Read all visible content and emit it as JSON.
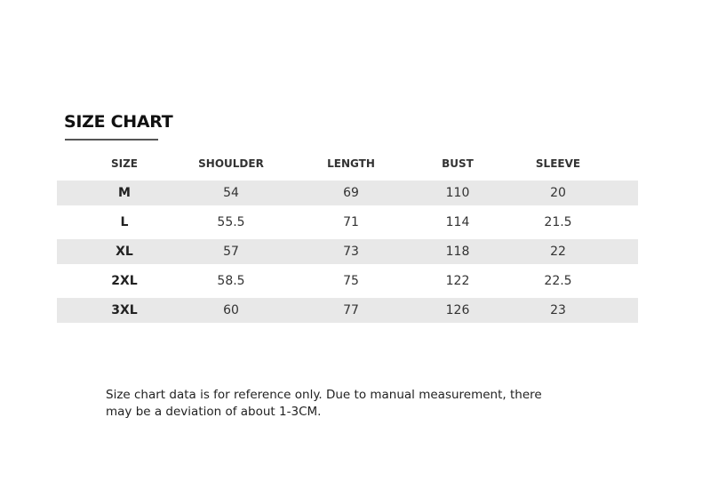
{
  "title": "SIZE CHART",
  "headers": [
    "SIZE",
    "SHOULDER",
    "LENGTH",
    "BUST",
    "SLEEVE"
  ],
  "rows": [
    [
      "M",
      "54",
      "69",
      "110",
      "20"
    ],
    [
      "L",
      "55.5",
      "71",
      "114",
      "21.5"
    ],
    [
      "XL",
      "57",
      "73",
      "118",
      "22"
    ],
    [
      "2XL",
      "58.5",
      "75",
      "122",
      "22.5"
    ],
    [
      "3XL",
      "60",
      "77",
      "126",
      "23"
    ]
  ],
  "note": "Size chart data is for reference only. Due to manual measurement, there may be a deviation of about 1-3CM.",
  "colors": {
    "row_shade": "#e8e8e8",
    "underline": "#555555"
  }
}
